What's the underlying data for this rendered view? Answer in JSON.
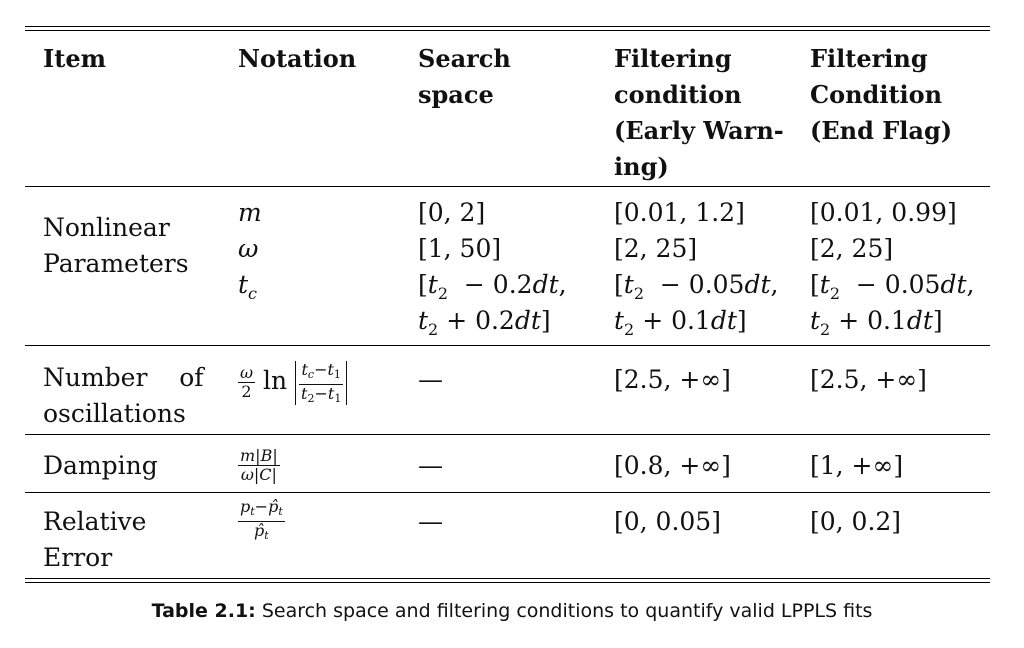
{
  "headers": [
    "Item",
    "Notation",
    "Search",
    "space",
    "Filtering",
    "condition",
    "(Early Warn-",
    "ing)",
    "Filtering",
    "Condition",
    "(End Flag)"
  ],
  "rows": {
    "nonlinear": {
      "item": [
        "Nonlinear",
        "Parameters"
      ],
      "notation": [
        "m",
        "ω",
        "t"
      ],
      "notation_sub": "c",
      "search": [
        "[0, 2]",
        "[1, 50]"
      ],
      "early": [
        "[0.01, 1.2]",
        "[2, 25]"
      ],
      "end": [
        "[0.01, 0.99]",
        "[2, 25]"
      ],
      "tc_search": [
        "− 0.2",
        "+ 0.2"
      ],
      "tc_early": [
        "− 0.05",
        "+ 0.1"
      ],
      "tc_end": [
        "− 0.05",
        "+ 0.1"
      ]
    },
    "oscillations": {
      "item": [
        "Number    of",
        "oscillations"
      ],
      "search": "—",
      "early": "[2.5, +∞]",
      "end": "[2.5, +∞]"
    },
    "damping": {
      "item": "Damping",
      "search": "—",
      "early": "[0.8, +∞]",
      "end": "[1, +∞]"
    },
    "relerr": {
      "item": [
        "Relative",
        "Error"
      ],
      "search": "—",
      "early": "[0, 0.05]",
      "end": "[0, 0.2]"
    }
  },
  "caption": {
    "label": "Table 2.1:",
    "text": " Search space and filtering conditions to quantify valid LPPLS fits"
  }
}
